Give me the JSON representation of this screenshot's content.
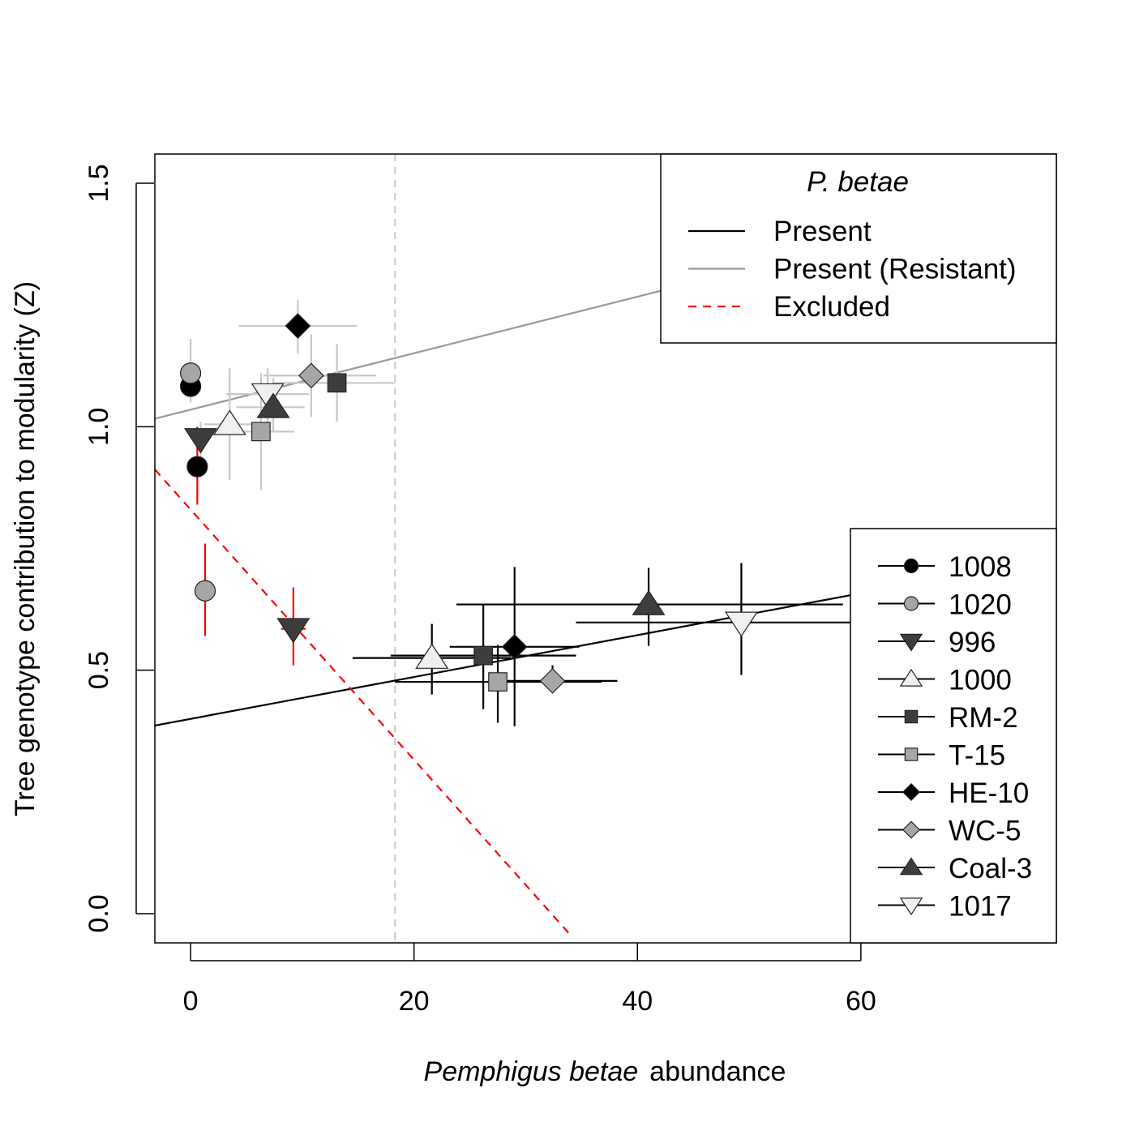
{
  "chart_data": {
    "type": "scatter",
    "xlabel_italic": "Pemphigus betae",
    "xlabel_rest": "abundance",
    "ylabel": "Tree genotype contribution to modularity (Z)",
    "xlim": [
      -3.2,
      77.5
    ],
    "ylim": [
      -0.06,
      1.56
    ],
    "x_ticks": [
      "0",
      "20",
      "40",
      "60"
    ],
    "x_tick_values": [
      0,
      20,
      40,
      60
    ],
    "y_ticks": [
      "0.0",
      "0.5",
      "1.0",
      "1.5"
    ],
    "y_tick_values": [
      0,
      0.5,
      1.0,
      1.5
    ],
    "threshold_x": 18.3,
    "lines": [
      {
        "group": "present",
        "intercept": 0.4,
        "slope": 0.0043,
        "x_range": [
          -3.2,
          60.9
        ],
        "color": "#000000",
        "dash": ""
      },
      {
        "group": "resistant",
        "intercept": 1.035,
        "slope": 0.0058,
        "x_range": [
          -3.2,
          42.6
        ],
        "color": "#999999",
        "dash": ""
      },
      {
        "group": "excluded",
        "intercept": 0.83,
        "slope": -0.0257,
        "x_range": [
          -3.2,
          34.2
        ],
        "color": "#ff0000",
        "dash": "10,8"
      }
    ],
    "legend_groups": {
      "title": "P. betae",
      "items": [
        {
          "label": "Present",
          "color": "#000000",
          "dash": ""
        },
        {
          "label": "Present (Resistant)",
          "color": "#999999",
          "dash": ""
        },
        {
          "label": "Excluded",
          "color": "#ff0000",
          "dash": "10,8"
        }
      ]
    },
    "genotypes": [
      {
        "name": "1008",
        "shape": "circle",
        "fill": "#000000"
      },
      {
        "name": "1020",
        "shape": "circle",
        "fill": "#a6a6a6"
      },
      {
        "name": "996",
        "shape": "triangle-down",
        "fill": "#3d3d3d"
      },
      {
        "name": "1000",
        "shape": "triangle-up",
        "fill": "#f0f0f0"
      },
      {
        "name": "RM-2",
        "shape": "square",
        "fill": "#3d3d3d"
      },
      {
        "name": "T-15",
        "shape": "square",
        "fill": "#a6a6a6"
      },
      {
        "name": "HE-10",
        "shape": "diamond",
        "fill": "#000000"
      },
      {
        "name": "WC-5",
        "shape": "diamond",
        "fill": "#a6a6a6"
      },
      {
        "name": "Coal-3",
        "shape": "triangle-up",
        "fill": "#3d3d3d"
      },
      {
        "name": "1017",
        "shape": "triangle-down",
        "fill": "#f0f0f0"
      }
    ],
    "series": [
      {
        "name": "Present",
        "error_color": "#000000",
        "points": [
          {
            "genotype": "1000",
            "x": 21.6,
            "y": 0.525,
            "xerr": [
              14.5,
              28.7
            ],
            "yerr": [
              0.45,
              0.595
            ]
          },
          {
            "genotype": "RM-2",
            "x": 26.2,
            "y": 0.53,
            "xerr": [
              17.9,
              34.5
            ],
            "yerr": [
              0.42,
              0.635
            ]
          },
          {
            "genotype": "HE-10",
            "x": 29.0,
            "y": 0.548,
            "xerr": [
              23.2,
              34.8
            ],
            "yerr": [
              0.385,
              0.712
            ]
          },
          {
            "genotype": "T-15",
            "x": 27.5,
            "y": 0.476,
            "xerr": [
              18.3,
              36.8
            ],
            "yerr": [
              0.392,
              0.552
            ]
          },
          {
            "genotype": "WC-5",
            "x": 32.4,
            "y": 0.478,
            "xerr": [
              26.7,
              38.2
            ],
            "yerr": [
              0.455,
              0.51
            ]
          },
          {
            "genotype": "Coal-3",
            "x": 41.0,
            "y": 0.635,
            "xerr": [
              23.8,
              58.4
            ],
            "yerr": [
              0.55,
              0.71
            ]
          },
          {
            "genotype": "1017",
            "x": 49.3,
            "y": 0.598,
            "xerr": [
              34.5,
              64.0
            ],
            "yerr": [
              0.49,
              0.72
            ]
          }
        ]
      },
      {
        "name": "Present (Resistant)",
        "error_color": "#c8c8c8",
        "points": [
          {
            "genotype": "1008",
            "x": 0.0,
            "y": 1.083,
            "xerr": null,
            "yerr": null
          },
          {
            "genotype": "1020",
            "x": 0.0,
            "y": 1.11,
            "xerr": null,
            "yerr": [
              1.05,
              1.18
            ]
          },
          {
            "genotype": "996",
            "x": 0.9,
            "y": 0.975,
            "xerr": null,
            "yerr": [
              0.93,
              1.01
            ]
          },
          {
            "genotype": "1000",
            "x": 3.5,
            "y": 1.005,
            "xerr": [
              1.2,
              5.8
            ],
            "yerr": [
              0.89,
              1.12
            ]
          },
          {
            "genotype": "T-15",
            "x": 6.3,
            "y": 0.99,
            "xerr": [
              3.9,
              9.3
            ],
            "yerr": [
              0.87,
              1.11
            ]
          },
          {
            "genotype": "1017",
            "x": 6.9,
            "y": 1.067,
            "xerr": [
              3.2,
              10.6
            ],
            "yerr": [
              1.0,
              1.12
            ]
          },
          {
            "genotype": "Coal-3",
            "x": 7.4,
            "y": 1.04,
            "xerr": [
              4.1,
              10.2
            ],
            "yerr": [
              0.99,
              1.1
            ]
          },
          {
            "genotype": "HE-10",
            "x": 9.6,
            "y": 1.207,
            "xerr": [
              4.3,
              14.9
            ],
            "yerr": [
              1.15,
              1.26
            ]
          },
          {
            "genotype": "WC-5",
            "x": 10.8,
            "y": 1.105,
            "xerr": [
              6.5,
              16.6
            ],
            "yerr": [
              1.02,
              1.19
            ]
          },
          {
            "genotype": "RM-2",
            "x": 13.1,
            "y": 1.09,
            "xerr": [
              7.3,
              18.3
            ],
            "yerr": [
              1.01,
              1.17
            ]
          }
        ]
      },
      {
        "name": "Excluded",
        "error_color": "#ff0000",
        "points": [
          {
            "genotype": "1008",
            "x": 0.6,
            "y": 0.918,
            "xerr": null,
            "yerr": [
              0.84,
              1.0
            ]
          },
          {
            "genotype": "1020",
            "x": 1.3,
            "y": 0.663,
            "xerr": null,
            "yerr": [
              0.57,
              0.76
            ]
          },
          {
            "genotype": "996",
            "x": 9.2,
            "y": 0.585,
            "xerr": [
              8.1,
              10.3
            ],
            "yerr": [
              0.51,
              0.67
            ]
          }
        ]
      }
    ]
  }
}
